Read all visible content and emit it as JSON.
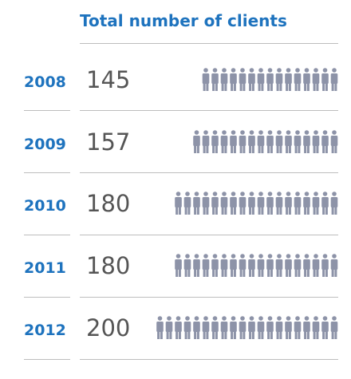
{
  "title": "Total number of clients",
  "colors": {
    "accent": "#1e73be",
    "figure": "#8d93a8",
    "value": "#555555",
    "divider": "#bdbdbd"
  },
  "icon": "person-icon",
  "chart_data": {
    "type": "table",
    "title": "Total number of clients",
    "categories": [
      "2008",
      "2009",
      "2010",
      "2011",
      "2012"
    ],
    "values": [
      145,
      157,
      180,
      180,
      200
    ],
    "rows": [
      {
        "year": "2008",
        "value": "145"
      },
      {
        "year": "2009",
        "value": "157"
      },
      {
        "year": "2010",
        "value": "180"
      },
      {
        "year": "2011",
        "value": "180"
      },
      {
        "year": "2012",
        "value": "200"
      }
    ]
  }
}
